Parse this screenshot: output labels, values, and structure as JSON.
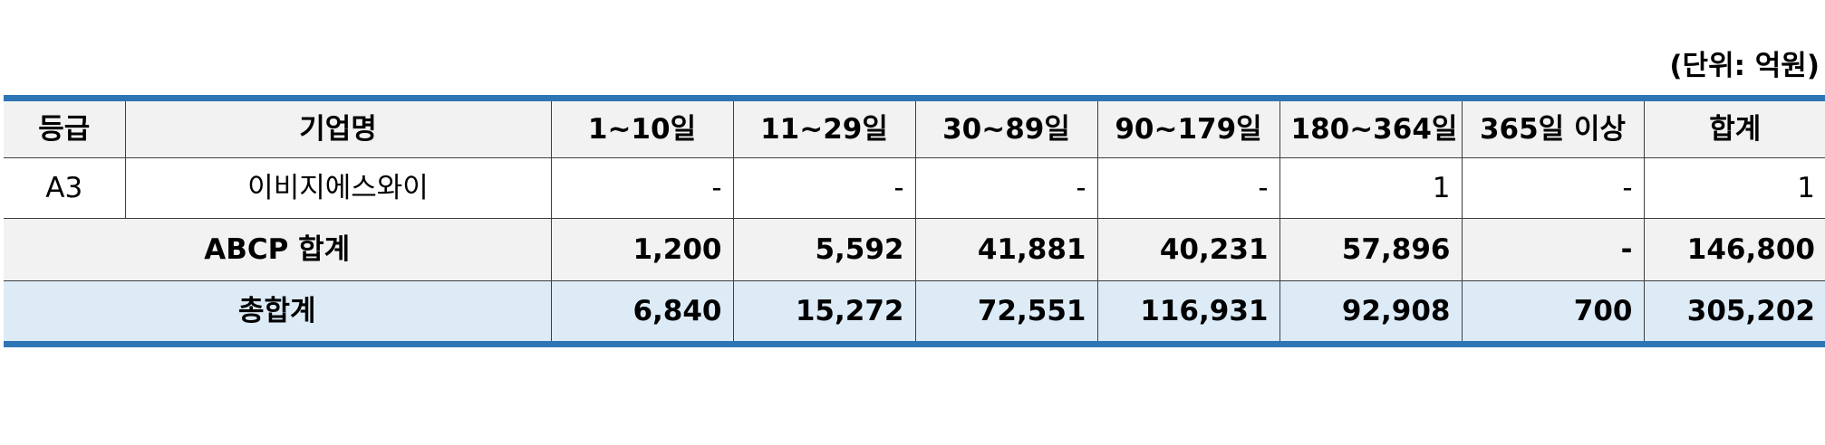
{
  "unit_note": "(단위: 억원)",
  "table": {
    "headers": {
      "grade": "등급",
      "company": "기업명",
      "d1_10": "1~10일",
      "d11_29": "11~29일",
      "d30_89": "30~89일",
      "d90_179": "90~179일",
      "d180_364": "180~364일",
      "d365_plus": "365일 이상",
      "total": "합계"
    },
    "rows": [
      {
        "grade": "A3",
        "company": "이비지에스와이",
        "d1_10": "-",
        "d11_29": "-",
        "d30_89": "-",
        "d90_179": "-",
        "d180_364": "1",
        "d365_plus": "-",
        "total": "1"
      }
    ],
    "subtotal": {
      "label": "ABCP 합계",
      "d1_10": "1,200",
      "d11_29": "5,592",
      "d30_89": "41,881",
      "d90_179": "40,231",
      "d180_364": "57,896",
      "d365_plus": "-",
      "total": "146,800"
    },
    "grand_total": {
      "label": "총합계",
      "d1_10": "6,840",
      "d11_29": "15,272",
      "d30_89": "72,551",
      "d90_179": "116,931",
      "d180_364": "92,908",
      "d365_plus": "700",
      "total": "305,202"
    }
  },
  "colors": {
    "border_accent": "#2e75b6",
    "header_bg": "#f2f2f2",
    "subtotal_bg": "#f2f2f2",
    "total_bg": "#ddebf7"
  }
}
